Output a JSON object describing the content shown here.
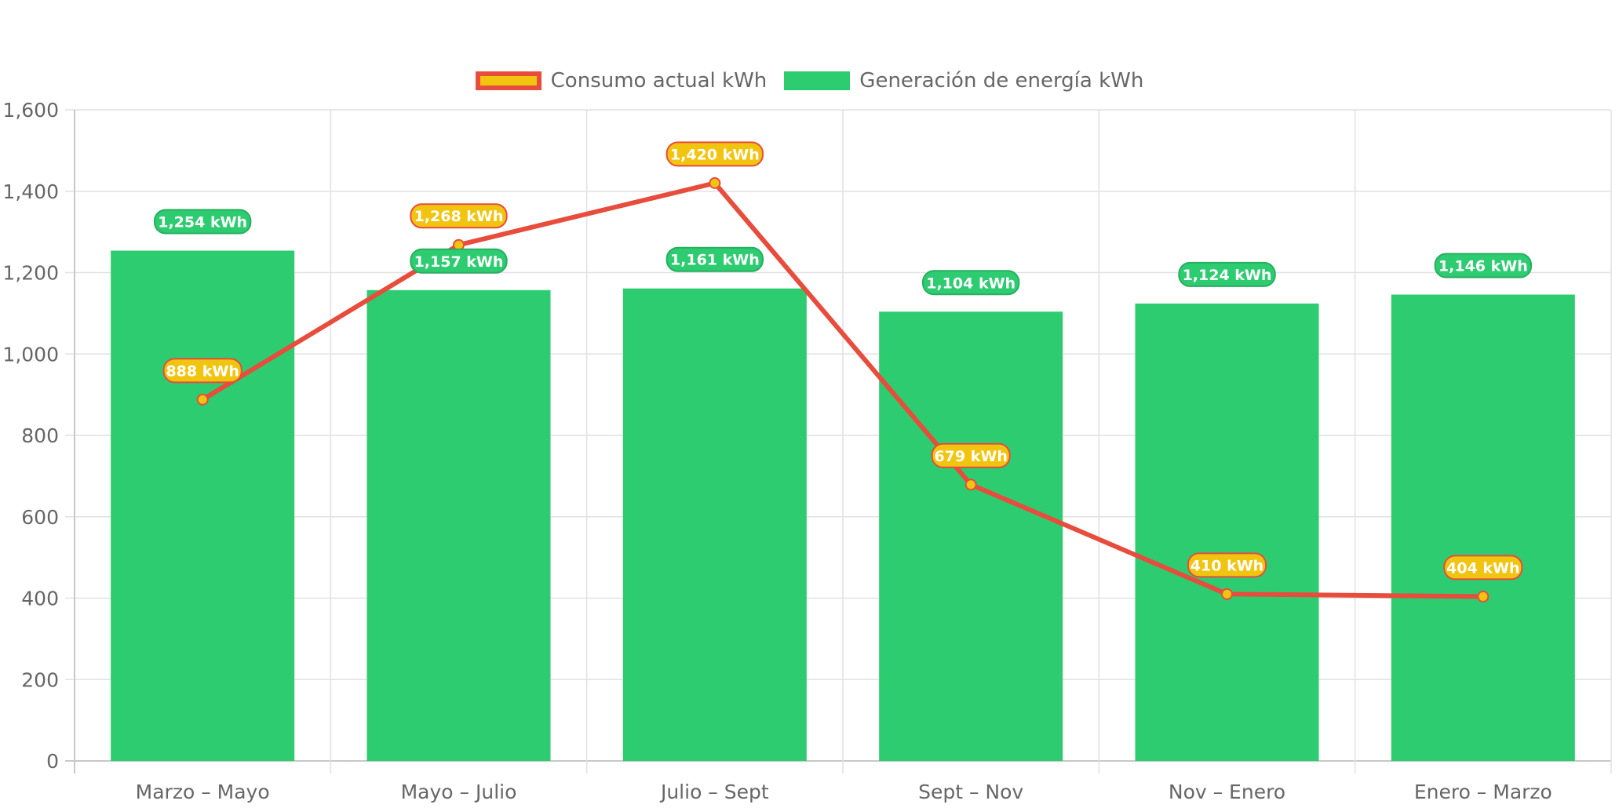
{
  "chart_data": {
    "type": "bar",
    "categories": [
      "Marzo – Mayo",
      "Mayo – Julio",
      "Julio – Sept",
      "Sept – Nov",
      "Nov – Enero",
      "Enero – Marzo"
    ],
    "series": [
      {
        "name": "Generación de energía kWh",
        "type": "bar",
        "color": "#2ecc71",
        "label_border": "#27ae60",
        "values": [
          1254,
          1157,
          1161,
          1104,
          1124,
          1146
        ],
        "labels": [
          "1,254 kWh",
          "1,157 kWh",
          "1,161 kWh",
          "1,104 kWh",
          "1,124 kWh",
          "1,146 kWh"
        ]
      },
      {
        "name": "Consumo actual kWh",
        "type": "line",
        "color": "#e74c3c",
        "point_color": "#f1c40f",
        "values": [
          888,
          1268,
          1420,
          679,
          410,
          404
        ],
        "labels": [
          "888 kWh",
          "1,268 kWh",
          "1,420 kWh",
          "679 kWh",
          "410 kWh",
          "404 kWh"
        ]
      }
    ],
    "ylim": [
      0,
      1600
    ],
    "yticks": [
      0,
      200,
      400,
      600,
      800,
      1000,
      1200,
      1400,
      1600
    ],
    "ytick_labels": [
      "0",
      "200",
      "400",
      "600",
      "800",
      "1,000",
      "1,200",
      "1,400",
      "1,600"
    ],
    "grid": true,
    "legend": "top-center"
  },
  "legend": {
    "consumo_label": "Consumo actual kWh",
    "generacion_label": "Generación de energía kWh"
  }
}
